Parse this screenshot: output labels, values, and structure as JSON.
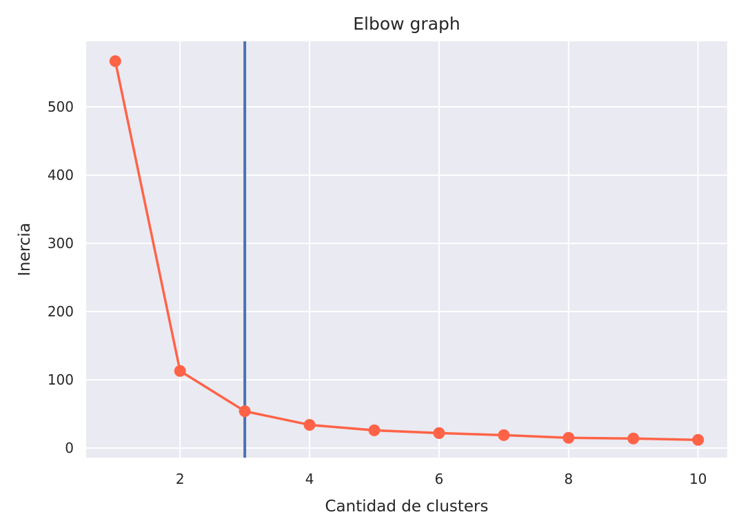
{
  "chart_data": {
    "type": "line",
    "title": "Elbow graph",
    "xlabel": "Cantidad de clusters",
    "ylabel": "Inercia",
    "xlim": [
      0.55,
      10.45
    ],
    "ylim": [
      -14,
      596
    ],
    "xticks": [
      2,
      4,
      6,
      8,
      10
    ],
    "yticks": [
      0,
      100,
      200,
      300,
      400,
      500
    ],
    "grid": true,
    "x": [
      1,
      2,
      3,
      4,
      5,
      6,
      7,
      8,
      9,
      10
    ],
    "series": [
      {
        "values": [
          567,
          113,
          54,
          34,
          26,
          22,
          19,
          15,
          14,
          12
        ],
        "color": "#ff6347"
      }
    ],
    "vline": {
      "x": 3,
      "color": "#4c72b0"
    },
    "background": "#eaeaf2"
  }
}
